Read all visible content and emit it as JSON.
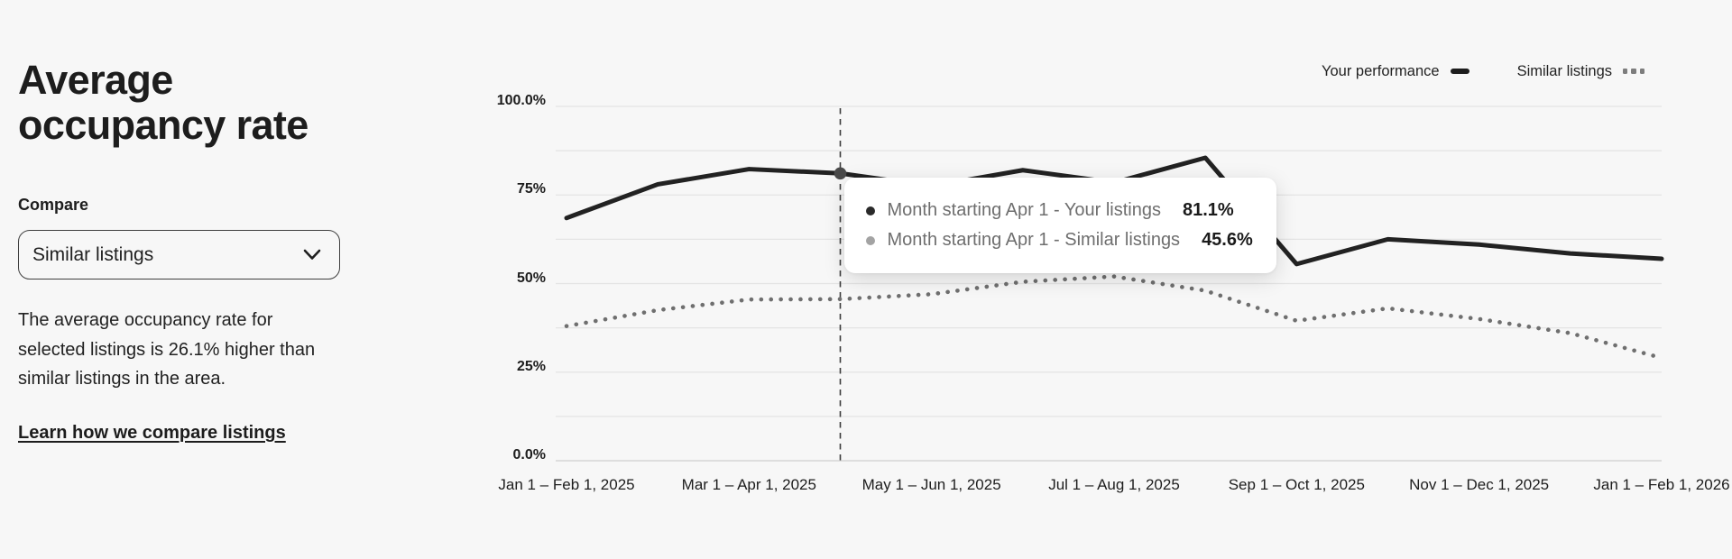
{
  "panel": {
    "title": "Average occupancy rate",
    "compare_label": "Compare",
    "compare_value": "Similar listings",
    "description": "The average occupancy rate for selected listings is 26.1% higher than similar listings in the area.",
    "link": "Learn how we compare listings"
  },
  "legend": [
    {
      "label": "Your performance",
      "marker": "solid-dash"
    },
    {
      "label": "Similar listings",
      "marker": "dotted"
    }
  ],
  "tooltip": {
    "rows": [
      {
        "label": "Month starting Apr 1 - Your listings",
        "value": "81.1%",
        "bullet_color": "#2a2a2a"
      },
      {
        "label": "Month starting Apr 1 - Similar listings",
        "value": "45.6%",
        "bullet_color": "#a3a3a3"
      }
    ]
  },
  "chart_data": {
    "type": "line",
    "title": "Average occupancy rate",
    "x_labels": [
      "Jan 1 – Feb 1, 2025",
      "Mar 1 – Apr 1, 2025",
      "May 1 – Jun 1, 2025",
      "Jul 1 – Aug 1, 2025",
      "Sep 1 – Oct 1, 2025",
      "Nov 1 – Dec 1, 2025",
      "Jan 1 – Feb 1, 2026"
    ],
    "y_ticks": [
      "100.0%",
      "75%",
      "50%",
      "25%",
      "0.0%"
    ],
    "ylim": [
      0,
      100
    ],
    "points_per_series": 13,
    "x_start": "Jan 1, 2025",
    "x_end": "Jan 1, 2026",
    "grid": true,
    "minor_gridlines": "every 12.5%",
    "legend_position": "top-right",
    "highlight_index": 3,
    "series": [
      {
        "name": "Your performance",
        "style": "solid",
        "color": "#222222",
        "values": [
          68.5,
          78.0,
          82.3,
          81.1,
          77.5,
          82.0,
          78.5,
          85.5,
          55.5,
          62.5,
          61.0,
          58.5,
          57.0
        ]
      },
      {
        "name": "Similar listings",
        "style": "dotted",
        "color": "#6f6f6f",
        "values": [
          38.0,
          42.5,
          45.5,
          45.6,
          47.0,
          50.5,
          52.0,
          48.0,
          39.5,
          43.0,
          40.0,
          36.0,
          29.0
        ]
      }
    ]
  },
  "colors": {
    "background": "#f7f7f7",
    "text": "#1f1f1f",
    "muted_text": "#6e6e6e",
    "gridline": "#e4e4e4",
    "your_line": "#222222",
    "similar_line": "#6f6f6f",
    "tooltip_bg": "#ffffff"
  }
}
